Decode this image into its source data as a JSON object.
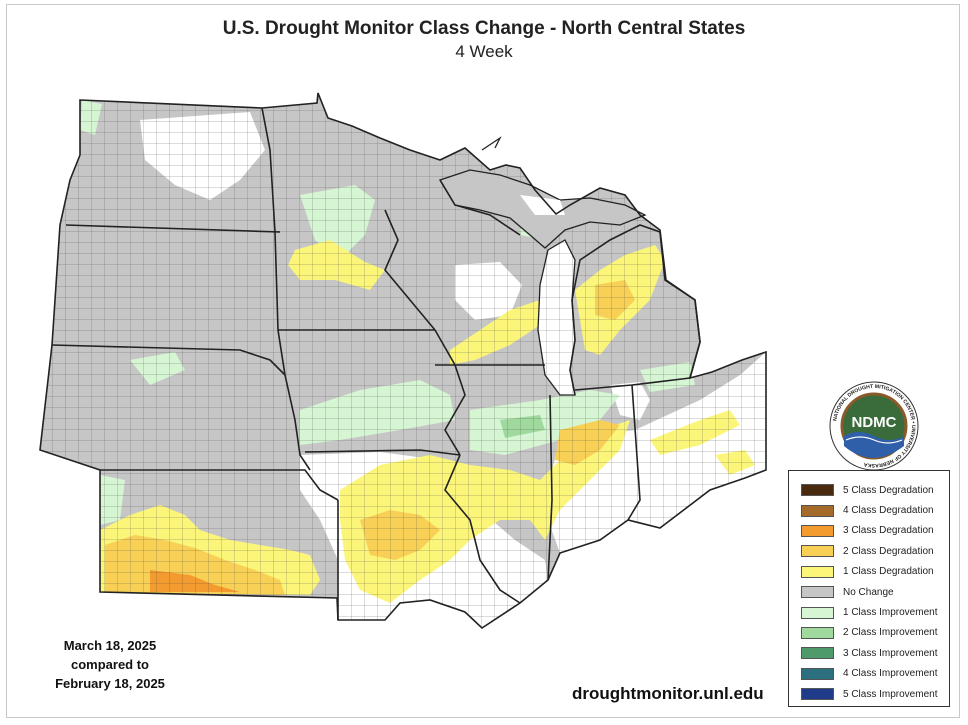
{
  "header": {
    "title": "U.S. Drought Monitor Class Change - North Central States",
    "subtitle": "4 Week"
  },
  "dates": {
    "line1": "March 18, 2025",
    "line2": "compared to",
    "line3": "February 18, 2025"
  },
  "source_url": "droughtmonitor.unl.edu",
  "logo": {
    "acronym": "NDMC",
    "ring_text": "NATIONAL DROUGHT MITIGATION CENTER • UNIVERSITY OF NEBRASKA"
  },
  "legend": {
    "items": [
      {
        "label": "5 Class Degradation",
        "color": "#4a2a0e"
      },
      {
        "label": "4 Class Degradation",
        "color": "#a36a2a"
      },
      {
        "label": "3 Class Degradation",
        "color": "#f39b2e"
      },
      {
        "label": "2 Class Degradation",
        "color": "#f7d055"
      },
      {
        "label": "1 Class Degradation",
        "color": "#fbf57a"
      },
      {
        "label": "No Change",
        "color": "#c6c6c6"
      },
      {
        "label": "1 Class Improvement",
        "color": "#d5f5d3"
      },
      {
        "label": "2 Class Improvement",
        "color": "#9fd99d"
      },
      {
        "label": "3 Class Improvement",
        "color": "#4e9a6a"
      },
      {
        "label": "4 Class Improvement",
        "color": "#2c6f7f"
      },
      {
        "label": "5 Class Improvement",
        "color": "#1f3b8a"
      }
    ]
  },
  "colors": {
    "no_change": "#c6c6c6",
    "white_area": "#ffffff",
    "deg1": "#fbf57a",
    "deg2": "#f7d055",
    "deg3": "#f39b2e",
    "imp1": "#d5f5d3",
    "imp2": "#9fd99d",
    "lake": "#ffffff",
    "state_border": "#222222",
    "county_line": "#444444"
  }
}
